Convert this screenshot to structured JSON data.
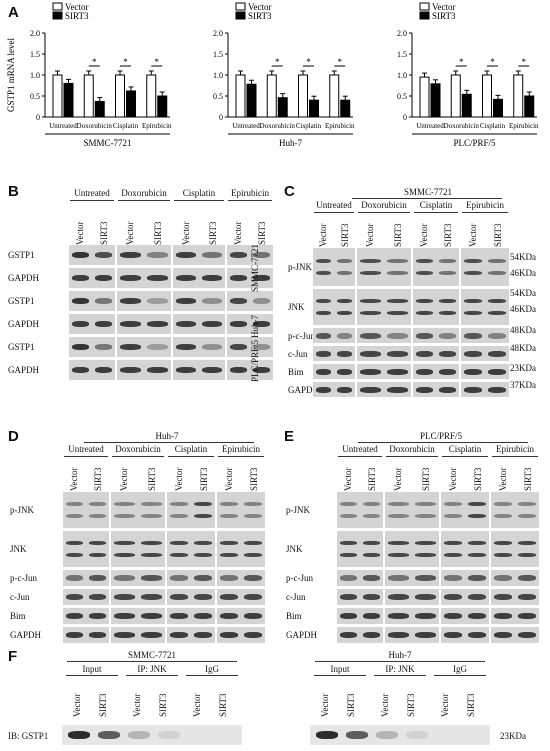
{
  "panels": {
    "A": "A",
    "B": "B",
    "C": "C",
    "D": "D",
    "E": "E",
    "F": "F"
  },
  "legend": {
    "vector": "Vector",
    "sirt3": "SIRT3"
  },
  "chart_data": [
    {
      "type": "bar",
      "title": "",
      "cell_line": "SMMC-7721",
      "ylabel": "GSTP1 mRNA level",
      "categories": [
        "Untreated",
        "Doxorubicin",
        "Cisplatin",
        "Epirubicin"
      ],
      "yticks": [
        "0",
        "0.5",
        "1.0",
        "1.5",
        "2.0"
      ],
      "ylim": [
        0,
        2.0
      ],
      "series": [
        {
          "name": "Vector",
          "values": [
            1.0,
            1.0,
            1.0,
            1.0
          ]
        },
        {
          "name": "SIRT3",
          "values": [
            0.8,
            0.37,
            0.62,
            0.5
          ]
        }
      ],
      "significance": [
        "",
        "*",
        "*",
        "*"
      ]
    },
    {
      "type": "bar",
      "title": "",
      "cell_line": "Huh-7",
      "categories": [
        "Untreated",
        "Doxorubicin",
        "Cisplatin",
        "Epirubicin"
      ],
      "yticks": [
        "0",
        "0.5",
        "1.0",
        "1.5",
        "2.0"
      ],
      "ylim": [
        0,
        2.0
      ],
      "series": [
        {
          "name": "Vector",
          "values": [
            1.0,
            1.0,
            1.0,
            1.0
          ]
        },
        {
          "name": "SIRT3",
          "values": [
            0.78,
            0.46,
            0.4,
            0.4
          ]
        }
      ],
      "significance": [
        "",
        "*",
        "*",
        "*"
      ]
    },
    {
      "type": "bar",
      "title": "",
      "cell_line": "PLC/PRF/5",
      "categories": [
        "Untreated",
        "Doxorubicin",
        "Cisplatin",
        "Epirubicin"
      ],
      "yticks": [
        "0",
        "0.5",
        "1.0",
        "1.5",
        "2.0"
      ],
      "ylim": [
        0,
        2.0
      ],
      "series": [
        {
          "name": "Vector",
          "values": [
            0.95,
            1.0,
            1.0,
            1.0
          ]
        },
        {
          "name": "SIRT3",
          "values": [
            0.79,
            0.54,
            0.42,
            0.5
          ]
        }
      ],
      "significance": [
        "",
        "*",
        "*",
        "*"
      ]
    }
  ],
  "treatments": [
    "Untreated",
    "Doxorubicin",
    "Cisplatin",
    "Epirubicin"
  ],
  "lanes": [
    "Vector",
    "SIRT3"
  ],
  "blotB": {
    "cell_lines": [
      "SMMC-7721",
      "Huh-7",
      "PLC/PRF/5"
    ],
    "rows": [
      "GSTP1",
      "GAPDH",
      "GSTP1",
      "GAPDH",
      "GSTP1",
      "GAPDH"
    ]
  },
  "blotC": {
    "title": "SMMC-7721",
    "rows": [
      "p-JNK",
      "JNK",
      "p-c-Jun",
      "c-Jun",
      "Bim",
      "GAPDH"
    ],
    "sizes": [
      "54KDa",
      "46KDa",
      "54KDa",
      "46KDa",
      "48KDa",
      "48KDa",
      "23KDa",
      "37KDa"
    ]
  },
  "blotD": {
    "title": "Huh-7",
    "rows": [
      "p-JNK",
      "JNK",
      "p-c-Jun",
      "c-Jun",
      "Bim",
      "GAPDH"
    ]
  },
  "blotE": {
    "title": "PLC/PRF/5",
    "rows": [
      "p-JNK",
      "JNK",
      "p-c-Jun",
      "c-Jun",
      "Bim",
      "GAPDH"
    ]
  },
  "blotF": {
    "left_title": "SMMC-7721",
    "right_title": "Huh-7",
    "groups": [
      "Input",
      "IP: JNK",
      "IgG"
    ],
    "row_label": "IB: GSTP1",
    "size": "23KDa"
  }
}
